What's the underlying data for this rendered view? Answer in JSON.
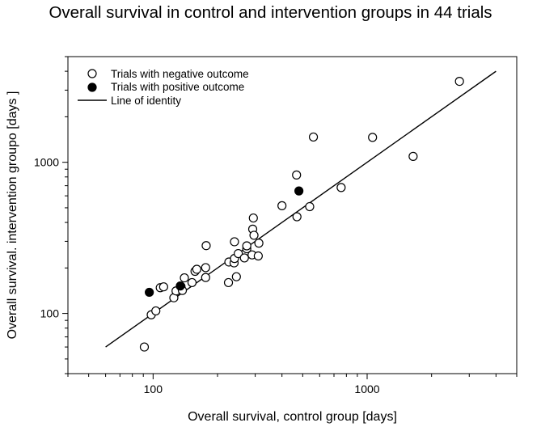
{
  "chart_data": {
    "type": "scatter",
    "title": "Overall survival in control and intervention groups in 44 trials",
    "xlabel": "Overall survival, control group [days]",
    "ylabel": "Overall survival. intervention groupo [days ]",
    "xscale": "log",
    "yscale": "log",
    "xlim": [
      40,
      5000
    ],
    "ylim": [
      40,
      5000
    ],
    "x_ticks": [
      100,
      1000
    ],
    "y_ticks": [
      100,
      1000
    ],
    "x_tick_labels": [
      "100",
      "1000"
    ],
    "y_tick_labels": [
      "100",
      "1000"
    ],
    "grid": false,
    "legend_position": "top-left",
    "legend": [
      {
        "label": "Trials with negative outcome",
        "marker": "open-circle"
      },
      {
        "label": "Trials with positive outcome",
        "marker": "filled-circle"
      },
      {
        "label": "Line of identity",
        "marker": "line"
      }
    ],
    "series": [
      {
        "name": "Trials with negative outcome",
        "marker": "open-circle",
        "points": [
          [
            91,
            60
          ],
          [
            98,
            98
          ],
          [
            103,
            104
          ],
          [
            108,
            148
          ],
          [
            112,
            150
          ],
          [
            125,
            127
          ],
          [
            128,
            141
          ],
          [
            135,
            151
          ],
          [
            137,
            142
          ],
          [
            140,
            172
          ],
          [
            152,
            160
          ],
          [
            157,
            190
          ],
          [
            160,
            196
          ],
          [
            176,
            173
          ],
          [
            176,
            201
          ],
          [
            177,
            281
          ],
          [
            225,
            160
          ],
          [
            226,
            219
          ],
          [
            239,
            216
          ],
          [
            240,
            231
          ],
          [
            240,
            298
          ],
          [
            245,
            175
          ],
          [
            250,
            249
          ],
          [
            267,
            233
          ],
          [
            274,
            268
          ],
          [
            274,
            280
          ],
          [
            290,
            244
          ],
          [
            292,
            361
          ],
          [
            294,
            428
          ],
          [
            296,
            329
          ],
          [
            310,
            240
          ],
          [
            312,
            292
          ],
          [
            400,
            516
          ],
          [
            468,
            824
          ],
          [
            470,
            436
          ],
          [
            539,
            509
          ],
          [
            561,
            1469
          ],
          [
            756,
            681
          ],
          [
            1060,
            1461
          ],
          [
            1640,
            1094
          ],
          [
            2700,
            3430
          ]
        ]
      },
      {
        "name": "Trials with positive outcome",
        "marker": "filled-circle",
        "points": [
          [
            96,
            138
          ],
          [
            134,
            152
          ],
          [
            480,
            646
          ]
        ]
      }
    ],
    "identity_line": {
      "from": 60,
      "to": 4000
    }
  },
  "colors": {
    "ink": "#000000",
    "background": "#ffffff"
  }
}
